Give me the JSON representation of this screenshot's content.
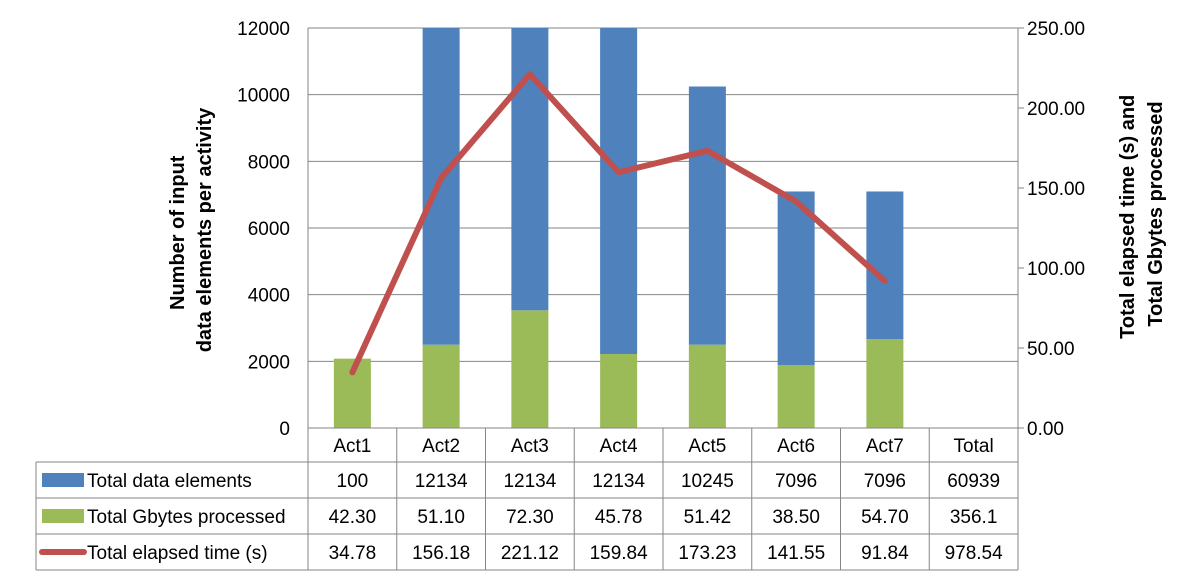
{
  "chart_data": {
    "type": "bar",
    "subtype": "stacked bar with line on secondary axis and data table",
    "categories": [
      "Act1",
      "Act2",
      "Act3",
      "Act4",
      "Act5",
      "Act6",
      "Act7",
      "Total"
    ],
    "ylabel_left_lines": [
      "Number of input",
      "data elements per activity"
    ],
    "ylabel_right_lines": [
      "Total elapsed time (s) and",
      "Total Gbytes processed"
    ],
    "y_left": {
      "min": 0,
      "max": 12000,
      "step": 2000,
      "ticks": [
        "0",
        "2000",
        "4000",
        "6000",
        "8000",
        "10000",
        "12000"
      ]
    },
    "y_right": {
      "min": 0,
      "max": 250,
      "step": 50,
      "ticks": [
        "0.00",
        "50.00",
        "100.00",
        "150.00",
        "200.00",
        "250.00"
      ]
    },
    "grid": true,
    "legend": "in data table",
    "series": [
      {
        "name": "Total data elements",
        "kind": "bar",
        "axis": "left",
        "color": "#4F81BD",
        "display": [
          "100",
          "12134",
          "12134",
          "12134",
          "10245",
          "7096",
          "7096",
          "60939"
        ],
        "plot_tops": [
          null,
          12134,
          12134,
          12134,
          10245,
          7096,
          7096,
          null
        ]
      },
      {
        "name": "Total Gbytes processed",
        "kind": "bar",
        "axis": "left",
        "color": "#9BBB59",
        "display": [
          "42.30",
          "51.10",
          "72.30",
          "45.78",
          "51.42",
          "38.50",
          "54.70",
          "356.1"
        ],
        "plot_heights": [
          2080,
          2500,
          3530,
          2220,
          2500,
          1890,
          2670,
          null
        ]
      },
      {
        "name": "Total elapsed time (s)",
        "kind": "line",
        "axis": "right",
        "color": "#C0504D",
        "display": [
          "34.78",
          "156.18",
          "221.12",
          "159.84",
          "173.23",
          "141.55",
          "91.84",
          "978.54"
        ],
        "values": [
          34.78,
          156.18,
          221.12,
          159.84,
          173.23,
          141.55,
          91.84,
          null
        ]
      }
    ]
  }
}
